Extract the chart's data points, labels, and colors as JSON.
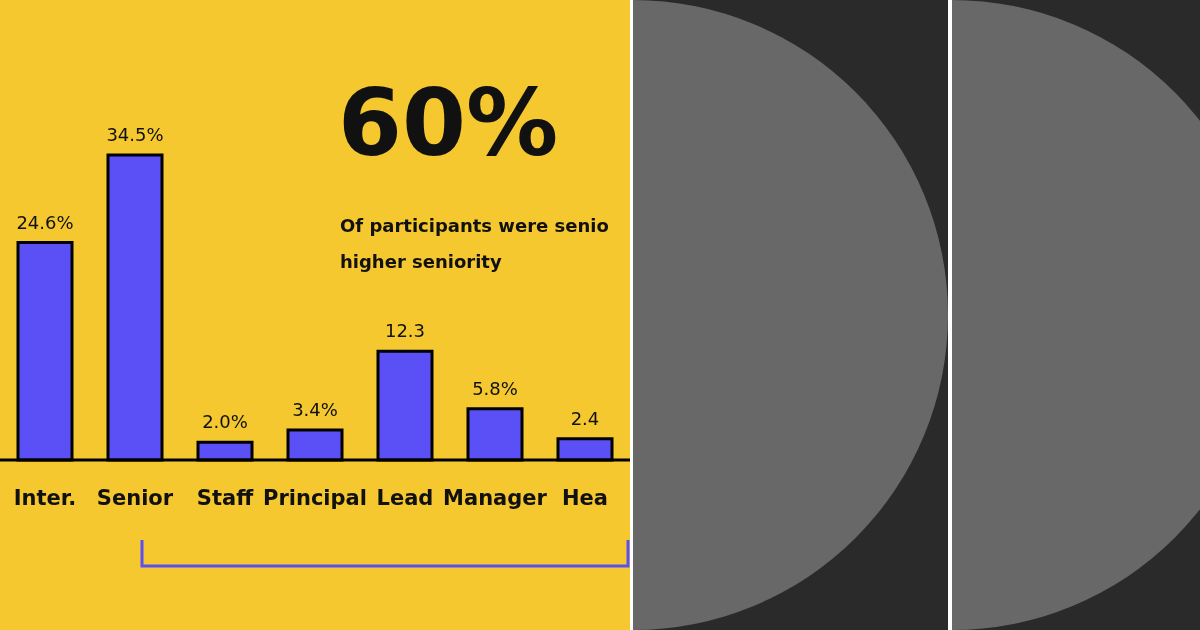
{
  "chart_data": {
    "type": "bar",
    "categories": [
      "Inter.",
      "Senior",
      "Staff",
      "Principal",
      "Lead",
      "Manager",
      "Hea"
    ],
    "values": [
      24.6,
      34.5,
      2.0,
      3.4,
      12.3,
      5.8,
      2.4
    ],
    "value_labels": [
      "24.6%",
      "34.5%",
      "2.0%",
      "3.4%",
      "12.3",
      "5.8%",
      "2.4"
    ],
    "color": "#5b50f5",
    "annotations": [
      "60%",
      "Of participants were senio",
      "higher seniority"
    ]
  }
}
